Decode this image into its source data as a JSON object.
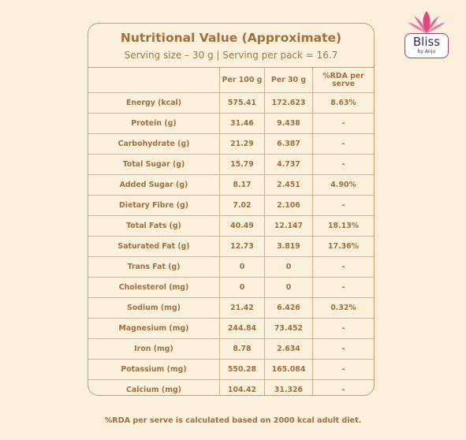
{
  "title": "Nutritional Value (Approximate)",
  "subtitle": "Serving size – 30 g | Serving per pack = 16.7",
  "columns": [
    "",
    "Per 100 g",
    "Per 30 g",
    "%RDA per serve"
  ],
  "rows": [
    [
      "Energy (kcal)",
      "575.41",
      "172.623",
      "8.63%"
    ],
    [
      "Protein (g)",
      "31.46",
      "9.438",
      "-"
    ],
    [
      "Carbohydrate (g)",
      "21.29",
      "6.387",
      "-"
    ],
    [
      "Total Sugar (g)",
      "15.79",
      "4.737",
      "-"
    ],
    [
      "Added Sugar (g)",
      "8.17",
      "2.451",
      "4.90%"
    ],
    [
      "Dietary Fibre (g)",
      "7.02",
      "2.106",
      "-"
    ],
    [
      "Total Fats (g)",
      "40.49",
      "12.147",
      "18.13%"
    ],
    [
      "Saturated Fat (g)",
      "12.73",
      "3.819",
      "17.36%"
    ],
    [
      "Trans Fat (g)",
      "0",
      "0",
      "-"
    ],
    [
      "Cholesterol (mg)",
      "0",
      "0",
      "-"
    ],
    [
      "Sodium (mg)",
      "21.42",
      "6.426",
      "0.32%"
    ],
    [
      "Magnesium (mg)",
      "244.84",
      "73.452",
      "-"
    ],
    [
      "Iron (mg)",
      "8.78",
      "2.634",
      "-"
    ],
    [
      "Potassium (mg)",
      "550.28",
      "165.084",
      "-"
    ],
    [
      "Calcium (mg)",
      "104.42",
      "31.326",
      "-"
    ]
  ],
  "footer": "%RDA per serve is calculated based on 2000 kcal adult diet.",
  "logo": {
    "name": "Bliss",
    "tagline": "by Anju",
    "icon": "lotus-icon"
  },
  "colors": {
    "background": "#fbf0dc",
    "text": "#a0703e",
    "border": "#c79a68",
    "lotus": "#e0457f"
  }
}
